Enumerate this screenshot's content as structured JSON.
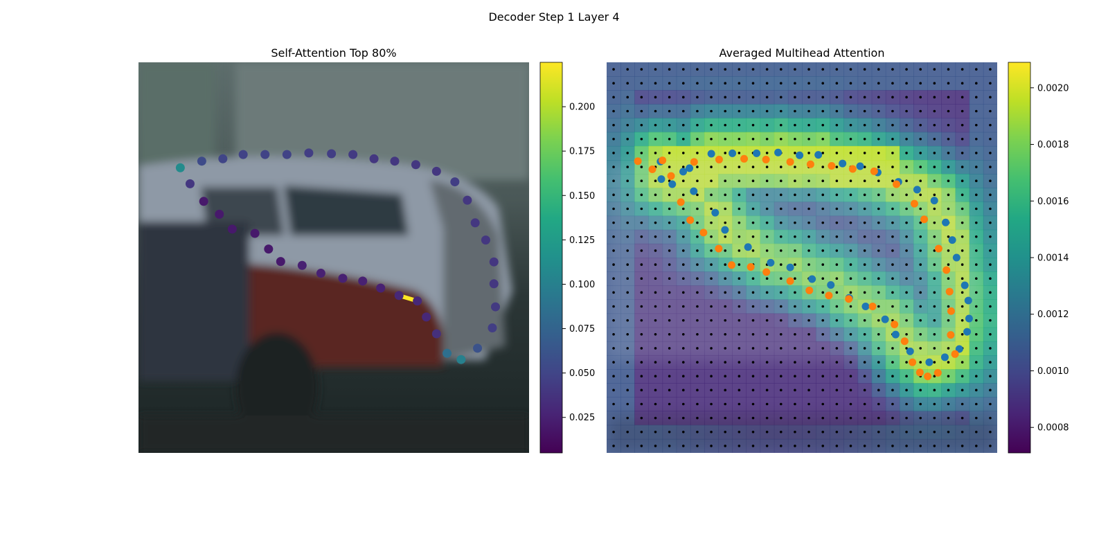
{
  "figure": {
    "suptitle": "Decoder Step 1 Layer 4"
  },
  "chart_data": [
    {
      "type": "scatter",
      "title": "Self-Attention Top 80%",
      "description_of_background": "blurred photo of parked cars",
      "colormap": "viridis",
      "colorbar": {
        "vmin": 0.005,
        "vmax": 0.225,
        "ticks": [
          0.025,
          0.05,
          0.075,
          0.1,
          0.125,
          0.15,
          0.175,
          0.2
        ],
        "tick_labels": [
          "0.025",
          "0.050",
          "0.075",
          "0.100",
          "0.125",
          "0.150",
          "0.175",
          "0.200"
        ]
      },
      "highlight_segment": {
        "from_index": 26,
        "to_index": 27,
        "color": "#fde725"
      },
      "points": [
        {
          "x": 0.107,
          "y": 0.27,
          "v": 0.11
        },
        {
          "x": 0.162,
          "y": 0.253,
          "v": 0.055
        },
        {
          "x": 0.216,
          "y": 0.247,
          "v": 0.05
        },
        {
          "x": 0.268,
          "y": 0.236,
          "v": 0.048
        },
        {
          "x": 0.324,
          "y": 0.236,
          "v": 0.048
        },
        {
          "x": 0.38,
          "y": 0.236,
          "v": 0.048
        },
        {
          "x": 0.436,
          "y": 0.232,
          "v": 0.045
        },
        {
          "x": 0.494,
          "y": 0.234,
          "v": 0.045
        },
        {
          "x": 0.549,
          "y": 0.236,
          "v": 0.043
        },
        {
          "x": 0.603,
          "y": 0.247,
          "v": 0.04
        },
        {
          "x": 0.656,
          "y": 0.253,
          "v": 0.04
        },
        {
          "x": 0.71,
          "y": 0.262,
          "v": 0.04
        },
        {
          "x": 0.763,
          "y": 0.279,
          "v": 0.04
        },
        {
          "x": 0.81,
          "y": 0.306,
          "v": 0.045
        },
        {
          "x": 0.842,
          "y": 0.353,
          "v": 0.04
        },
        {
          "x": 0.862,
          "y": 0.411,
          "v": 0.04
        },
        {
          "x": 0.889,
          "y": 0.455,
          "v": 0.04
        },
        {
          "x": 0.91,
          "y": 0.511,
          "v": 0.04
        },
        {
          "x": 0.91,
          "y": 0.567,
          "v": 0.04
        },
        {
          "x": 0.914,
          "y": 0.626,
          "v": 0.042
        },
        {
          "x": 0.906,
          "y": 0.68,
          "v": 0.045
        },
        {
          "x": 0.868,
          "y": 0.732,
          "v": 0.06
        },
        {
          "x": 0.826,
          "y": 0.761,
          "v": 0.1
        },
        {
          "x": 0.79,
          "y": 0.745,
          "v": 0.085
        },
        {
          "x": 0.763,
          "y": 0.695,
          "v": 0.035
        },
        {
          "x": 0.737,
          "y": 0.652,
          "v": 0.03
        },
        {
          "x": 0.714,
          "y": 0.611,
          "v": 0.03
        },
        {
          "x": 0.667,
          "y": 0.597,
          "v": 0.03
        },
        {
          "x": 0.62,
          "y": 0.578,
          "v": 0.025
        },
        {
          "x": 0.574,
          "y": 0.56,
          "v": 0.025
        },
        {
          "x": 0.523,
          "y": 0.553,
          "v": 0.025
        },
        {
          "x": 0.467,
          "y": 0.54,
          "v": 0.025
        },
        {
          "x": 0.419,
          "y": 0.52,
          "v": 0.025
        },
        {
          "x": 0.364,
          "y": 0.51,
          "v": 0.02
        },
        {
          "x": 0.333,
          "y": 0.478,
          "v": 0.02
        },
        {
          "x": 0.298,
          "y": 0.438,
          "v": 0.02
        },
        {
          "x": 0.24,
          "y": 0.427,
          "v": 0.02
        },
        {
          "x": 0.207,
          "y": 0.389,
          "v": 0.02
        },
        {
          "x": 0.167,
          "y": 0.356,
          "v": 0.02
        },
        {
          "x": 0.132,
          "y": 0.311,
          "v": 0.04
        }
      ]
    },
    {
      "type": "heatmap",
      "title": "Averaged Multihead Attention",
      "colormap": "viridis",
      "grid_size": 28,
      "colorbar": {
        "vmin": 0.00071,
        "vmax": 0.00209,
        "ticks": [
          0.0008,
          0.001,
          0.0012,
          0.0014,
          0.0016,
          0.0018,
          0.002
        ],
        "tick_labels": [
          "0.0008",
          "0.0010",
          "0.0012",
          "0.0014",
          "0.0016",
          "0.0018",
          "0.0020"
        ]
      },
      "series": [
        {
          "color": "#1f77b4",
          "points": [
            [
              0.138,
              0.254
            ],
            [
              0.14,
              0.299
            ],
            [
              0.168,
              0.312
            ],
            [
              0.212,
              0.271
            ],
            [
              0.268,
              0.234
            ],
            [
              0.322,
              0.233
            ],
            [
              0.384,
              0.233
            ],
            [
              0.439,
              0.231
            ],
            [
              0.494,
              0.238
            ],
            [
              0.542,
              0.237
            ],
            [
              0.604,
              0.259
            ],
            [
              0.649,
              0.266
            ],
            [
              0.694,
              0.282
            ],
            [
              0.747,
              0.306
            ],
            [
              0.795,
              0.326
            ],
            [
              0.839,
              0.354
            ],
            [
              0.868,
              0.41
            ],
            [
              0.885,
              0.455
            ],
            [
              0.896,
              0.5
            ],
            [
              0.917,
              0.571
            ],
            [
              0.926,
              0.61
            ],
            [
              0.928,
              0.656
            ],
            [
              0.923,
              0.69
            ],
            [
              0.903,
              0.734
            ],
            [
              0.866,
              0.755
            ],
            [
              0.826,
              0.768
            ],
            [
              0.777,
              0.74
            ],
            [
              0.74,
              0.697
            ],
            [
              0.713,
              0.658
            ],
            [
              0.663,
              0.625
            ],
            [
              0.621,
              0.603
            ],
            [
              0.574,
              0.57
            ],
            [
              0.526,
              0.555
            ],
            [
              0.47,
              0.525
            ],
            [
              0.42,
              0.513
            ],
            [
              0.362,
              0.473
            ],
            [
              0.303,
              0.429
            ],
            [
              0.278,
              0.385
            ],
            [
              0.223,
              0.33
            ],
            [
              0.196,
              0.28
            ]
          ]
        },
        {
          "color": "#ff7f0e",
          "points": [
            [
              0.08,
              0.253
            ],
            [
              0.117,
              0.274
            ],
            [
              0.143,
              0.251
            ],
            [
              0.165,
              0.291
            ],
            [
              0.19,
              0.358
            ],
            [
              0.214,
              0.404
            ],
            [
              0.248,
              0.436
            ],
            [
              0.287,
              0.477
            ],
            [
              0.32,
              0.519
            ],
            [
              0.369,
              0.524
            ],
            [
              0.409,
              0.537
            ],
            [
              0.47,
              0.56
            ],
            [
              0.519,
              0.584
            ],
            [
              0.569,
              0.597
            ],
            [
              0.62,
              0.606
            ],
            [
              0.681,
              0.625
            ],
            [
              0.737,
              0.671
            ],
            [
              0.763,
              0.714
            ],
            [
              0.783,
              0.768
            ],
            [
              0.802,
              0.794
            ],
            [
              0.822,
              0.804
            ],
            [
              0.848,
              0.795
            ],
            [
              0.892,
              0.747
            ],
            [
              0.881,
              0.698
            ],
            [
              0.882,
              0.637
            ],
            [
              0.878,
              0.587
            ],
            [
              0.87,
              0.532
            ],
            [
              0.85,
              0.477
            ],
            [
              0.813,
              0.402
            ],
            [
              0.788,
              0.362
            ],
            [
              0.742,
              0.312
            ],
            [
              0.685,
              0.279
            ],
            [
              0.63,
              0.273
            ],
            [
              0.576,
              0.265
            ],
            [
              0.522,
              0.261
            ],
            [
              0.47,
              0.255
            ],
            [
              0.408,
              0.249
            ],
            [
              0.352,
              0.247
            ],
            [
              0.288,
              0.249
            ],
            [
              0.224,
              0.255
            ]
          ]
        }
      ]
    }
  ]
}
